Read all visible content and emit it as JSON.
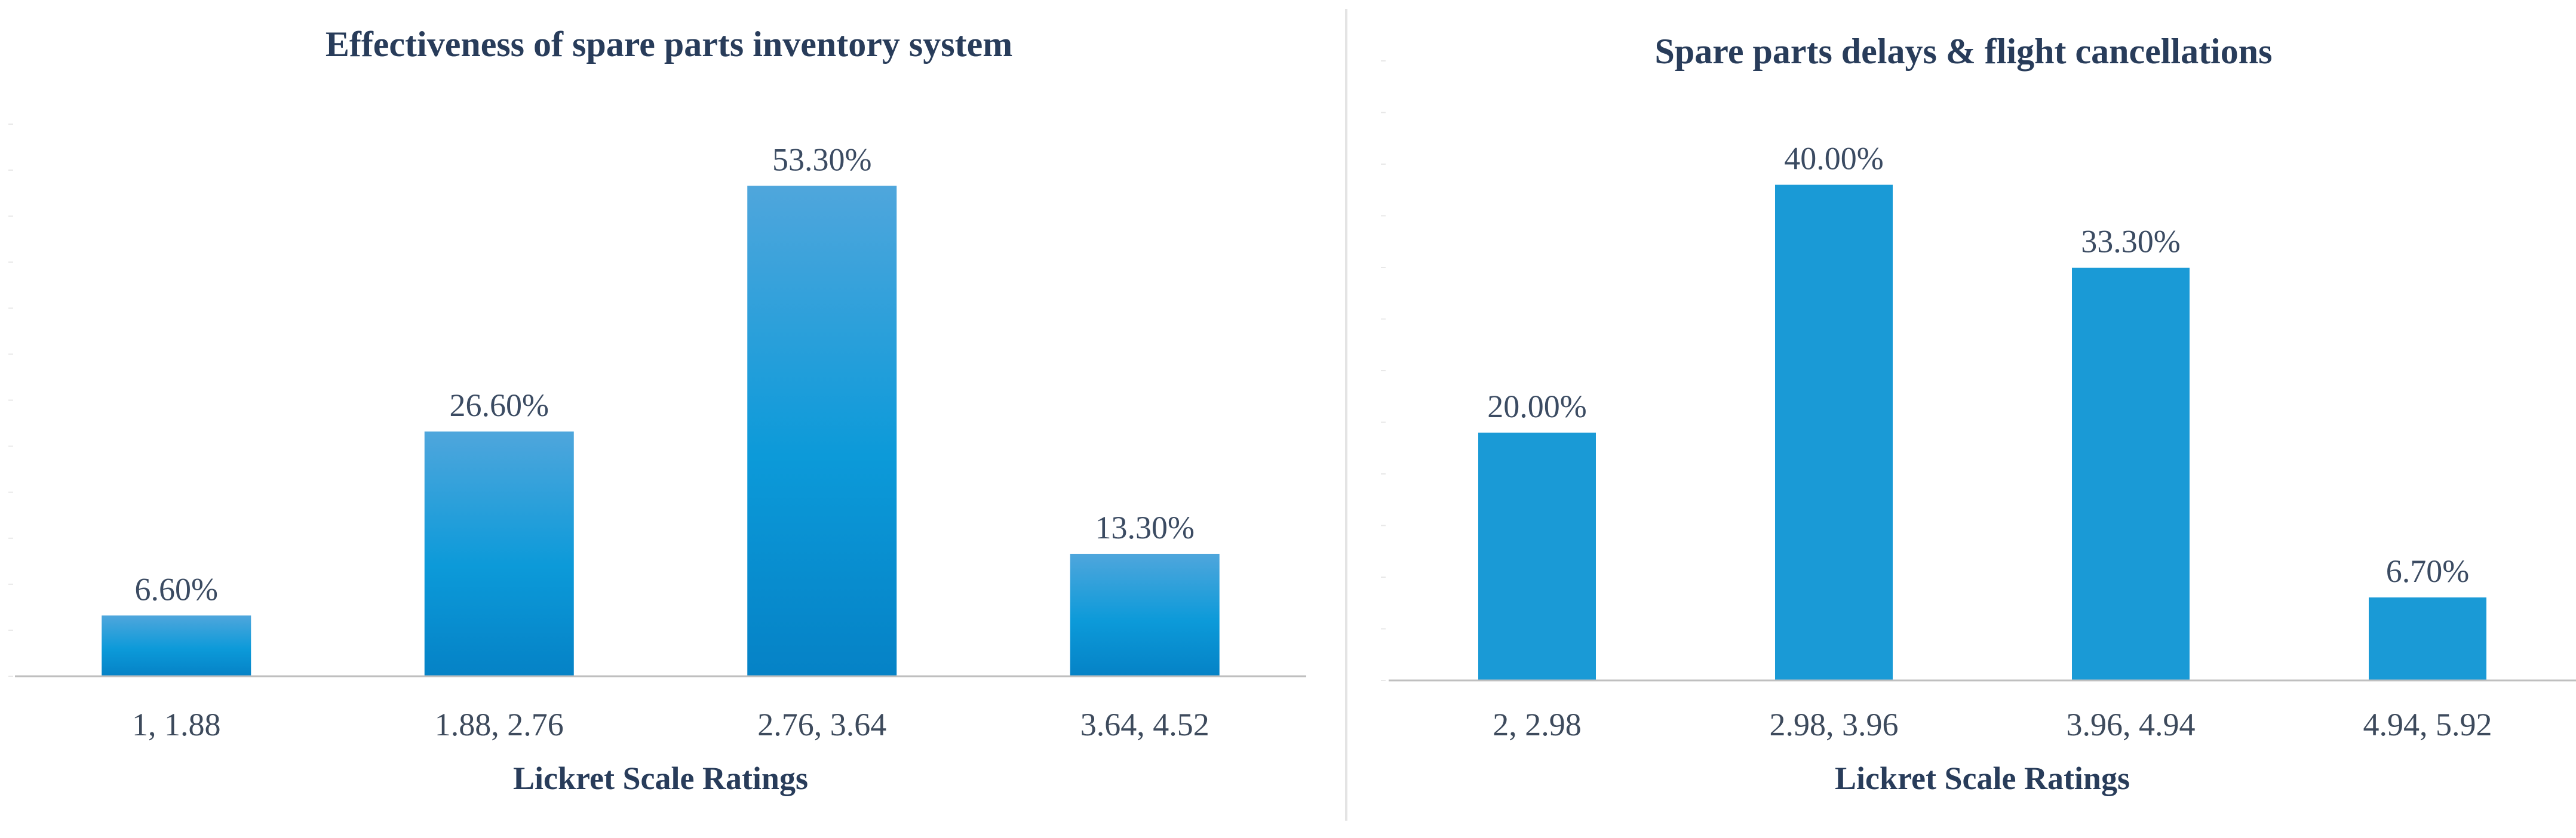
{
  "colors": {
    "left_bar_top": "#4fa6dc",
    "left_bar_bottom": "#0582c6",
    "left_bar_mid": "#0c9ad9",
    "right_bar": "#1a9ad6",
    "axis": "#bfbfbf",
    "title": "#283c5a"
  },
  "chart_data": [
    {
      "type": "bar",
      "title": "Effectiveness of spare parts inventory system",
      "xlabel": "Lickret Scale Ratings",
      "ylabel": "",
      "categories": [
        "1, 1.88",
        "1.88, 2.76",
        "2.76, 3.64",
        "3.64, 4.52"
      ],
      "values": [
        6.6,
        26.6,
        53.3,
        13.3
      ],
      "value_labels": [
        "6.60%",
        "26.60%",
        "53.30%",
        "13.30%"
      ],
      "ylim": [
        0,
        60
      ],
      "grid": false,
      "legend": "none"
    },
    {
      "type": "bar",
      "title": "Spare parts delays & flight cancellations",
      "xlabel": "Lickret Scale Ratings",
      "ylabel": "",
      "categories": [
        "2, 2.98",
        "2.98, 3.96",
        "3.96, 4.94",
        "4.94, 5.92"
      ],
      "values": [
        20.0,
        40.0,
        33.3,
        6.7
      ],
      "value_labels": [
        "20.00%",
        "40.00%",
        "33.30%",
        "6.70%"
      ],
      "ylim": [
        0,
        50
      ],
      "grid": false,
      "legend": "none"
    }
  ]
}
